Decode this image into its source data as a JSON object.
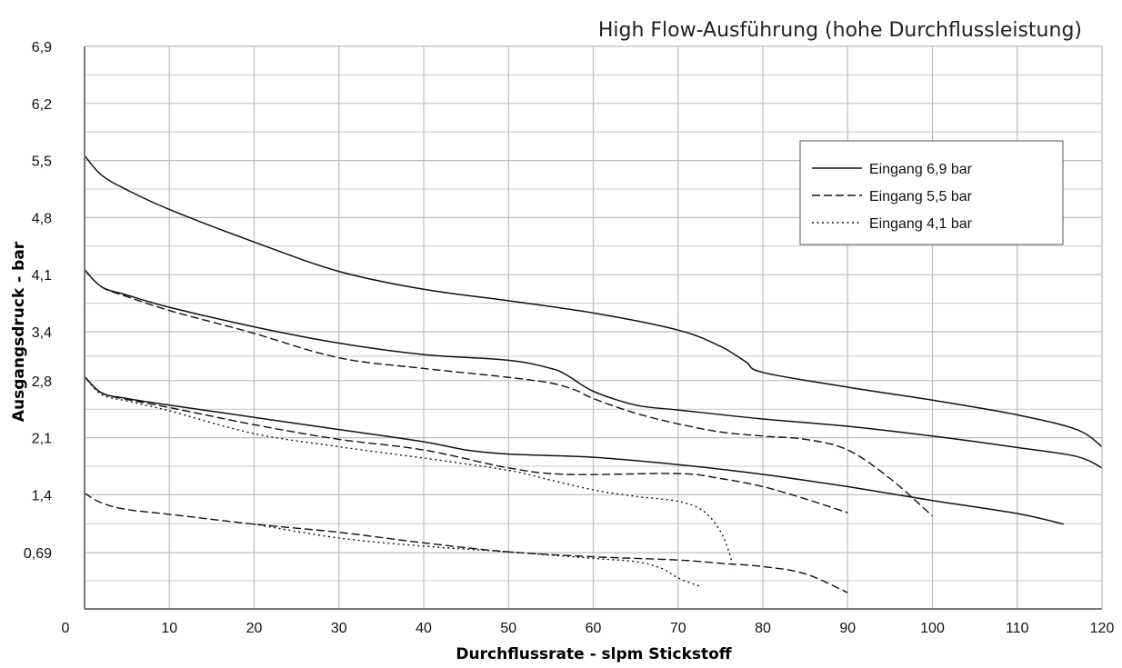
{
  "chart_data": {
    "type": "line",
    "title": "High Flow-Ausführung (hohe Durchflussleistung)",
    "xlabel": "Durchflussrate - slpm Stickstoff",
    "ylabel": "Ausgangsdruck - bar",
    "xlim": [
      0,
      120
    ],
    "ylim": [
      0,
      6.9
    ],
    "x_ticks": [
      0,
      10,
      20,
      30,
      40,
      50,
      60,
      70,
      80,
      90,
      100,
      110,
      120
    ],
    "y_ticks": [
      0,
      0.69,
      1.4,
      2.1,
      2.8,
      3.4,
      4.1,
      4.8,
      5.5,
      6.2,
      6.9
    ],
    "x_tick_labels": [
      "0",
      "10",
      "20",
      "30",
      "40",
      "50",
      "60",
      "70",
      "80",
      "90",
      "100",
      "110",
      "120"
    ],
    "y_tick_labels": [
      "0",
      "0,69",
      "1,4",
      "2,1",
      "2,8",
      "3,4",
      "4,1",
      "4,8",
      "5,5",
      "6,2",
      "6,9"
    ],
    "grid": true,
    "legend_position": "top-right",
    "legend": [
      {
        "label": "Eingang 6,9 bar",
        "style": "solid"
      },
      {
        "label": "Eingang 5,5 bar",
        "style": "dashed"
      },
      {
        "label": "Eingang 4,1 bar",
        "style": "dotted"
      }
    ],
    "series": [
      {
        "group": "Eingang 6,9 bar",
        "style": "solid",
        "x": [
          0,
          2,
          5,
          10,
          20,
          30,
          40,
          50,
          60,
          70,
          75,
          78,
          80,
          90,
          100,
          110,
          117,
          120
        ],
        "y": [
          5.56,
          5.32,
          5.14,
          4.9,
          4.5,
          4.14,
          3.92,
          3.78,
          3.63,
          3.42,
          3.22,
          3.03,
          2.9,
          2.72,
          2.56,
          2.38,
          2.2,
          1.99
        ]
      },
      {
        "group": "Eingang 6,9 bar",
        "style": "solid",
        "x": [
          0,
          2,
          5,
          10,
          20,
          30,
          40,
          50,
          55,
          57,
          60,
          65,
          70,
          80,
          90,
          100,
          110,
          117,
          120
        ],
        "y": [
          4.16,
          3.95,
          3.85,
          3.7,
          3.46,
          3.26,
          3.12,
          3.05,
          2.95,
          2.86,
          2.67,
          2.5,
          2.44,
          2.33,
          2.24,
          2.12,
          1.98,
          1.87,
          1.73
        ]
      },
      {
        "group": "Eingang 6,9 bar",
        "style": "solid",
        "x": [
          0,
          2,
          5,
          10,
          20,
          30,
          40,
          45,
          50,
          60,
          70,
          80,
          90,
          100,
          110,
          115.5
        ],
        "y": [
          2.85,
          2.65,
          2.58,
          2.5,
          2.35,
          2.2,
          2.05,
          1.95,
          1.9,
          1.86,
          1.77,
          1.65,
          1.5,
          1.33,
          1.17,
          1.04
        ]
      },
      {
        "group": "Eingang 5,5 bar",
        "style": "dashed",
        "x": [
          0,
          2,
          5,
          10,
          15,
          20,
          30,
          40,
          50,
          55,
          58,
          60,
          65,
          70,
          75,
          80,
          85,
          90,
          95,
          100
        ],
        "y": [
          4.16,
          3.95,
          3.83,
          3.66,
          3.52,
          3.38,
          3.08,
          2.95,
          2.84,
          2.77,
          2.68,
          2.58,
          2.4,
          2.27,
          2.17,
          2.12,
          2.08,
          1.95,
          1.6,
          1.14
        ]
      },
      {
        "group": "Eingang 5,5 bar",
        "style": "dashed",
        "x": [
          0,
          2,
          5,
          10,
          20,
          30,
          40,
          50,
          57,
          70,
          75,
          80,
          85,
          90
        ],
        "y": [
          2.85,
          2.65,
          2.57,
          2.47,
          2.26,
          2.08,
          1.95,
          1.73,
          1.65,
          1.66,
          1.6,
          1.5,
          1.35,
          1.18
        ]
      },
      {
        "group": "Eingang 5,5 bar",
        "style": "dashed",
        "x": [
          0,
          2,
          5,
          10,
          20,
          30,
          40,
          50,
          60,
          70,
          75,
          80,
          85,
          90
        ],
        "y": [
          1.42,
          1.3,
          1.22,
          1.16,
          1.04,
          0.94,
          0.81,
          0.7,
          0.64,
          0.6,
          0.56,
          0.52,
          0.43,
          0.2
        ]
      },
      {
        "group": "Eingang 4,1 bar",
        "style": "dotted",
        "x": [
          0,
          2,
          5,
          10,
          20,
          30,
          40,
          50,
          55,
          60,
          65,
          70,
          73,
          75,
          76,
          76.5
        ],
        "y": [
          2.85,
          2.63,
          2.55,
          2.43,
          2.15,
          1.99,
          1.85,
          1.7,
          1.58,
          1.46,
          1.38,
          1.32,
          1.2,
          0.95,
          0.7,
          0.5
        ]
      },
      {
        "group": "Eingang 4,1 bar",
        "style": "dotted",
        "x": [
          20,
          30,
          40,
          50,
          60,
          65,
          68,
          70,
          72.5
        ],
        "y": [
          1.04,
          0.87,
          0.77,
          0.7,
          0.62,
          0.58,
          0.5,
          0.38,
          0.28
        ]
      }
    ]
  }
}
